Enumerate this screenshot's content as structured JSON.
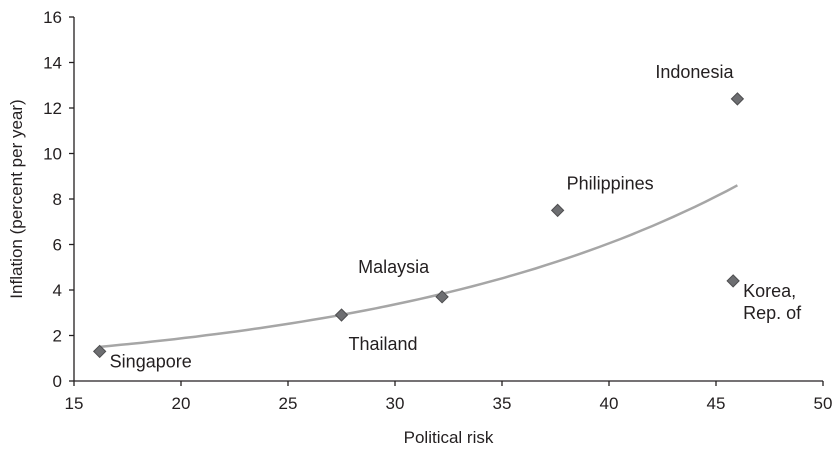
{
  "chart_data": {
    "type": "scatter",
    "xlabel": "Political risk",
    "ylabel": "Inflation (percent per year)",
    "xlim": [
      15,
      50
    ],
    "ylim": [
      0,
      16
    ],
    "xticks": [
      "15",
      "20",
      "25",
      "30",
      "35",
      "40",
      "45",
      "50"
    ],
    "yticks": [
      "0",
      "2",
      "4",
      "6",
      "8",
      "10",
      "12",
      "14",
      "16"
    ],
    "grid": false,
    "points": [
      {
        "label": "Singapore",
        "label_lines": [
          "Singapore"
        ],
        "label_pos": "below-right",
        "x": 16.2,
        "y": 1.3
      },
      {
        "label": "Thailand",
        "label_lines": [
          "Thailand"
        ],
        "label_pos": "below",
        "x": 27.5,
        "y": 2.9
      },
      {
        "label": "Malaysia",
        "label_lines": [
          "Malaysia"
        ],
        "label_pos": "above-left",
        "x": 32.2,
        "y": 3.7
      },
      {
        "label": "Philippines",
        "label_lines": [
          "Philippines"
        ],
        "label_pos": "above-right",
        "x": 37.6,
        "y": 7.5
      },
      {
        "label": "Indonesia",
        "label_lines": [
          "Indonesia"
        ],
        "label_pos": "above",
        "x": 46.0,
        "y": 12.4
      },
      {
        "label": "Korea, Rep. of",
        "label_lines": [
          "Korea,",
          "Rep. of"
        ],
        "label_pos": "below-right",
        "x": 45.8,
        "y": 4.4
      }
    ],
    "trendline": {
      "type": "exponential",
      "x_range": [
        16.2,
        46.0
      ],
      "y_start": 1.5,
      "y_end": 8.6,
      "color": "#a6a6a6"
    },
    "marker_color": "#6d6e71"
  }
}
